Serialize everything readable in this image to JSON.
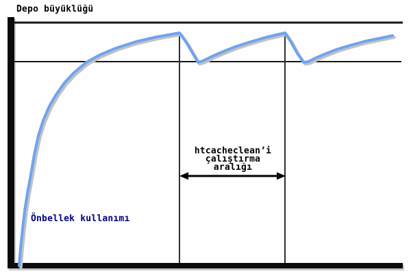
{
  "labels": {
    "y_axis_title": "Depo büyüklüğü",
    "curve_label": "Önbellek kullanımı",
    "interval_label": "htcacheclean’i\nçalıştırma\naralığı"
  },
  "colors": {
    "background": "#fefefe",
    "axis": "#0b0b0b",
    "line": "#161616",
    "curve": "#6fa3ef",
    "curve_shadow": "#c2c2c2",
    "curve_label_text": "#00007f"
  },
  "chart_data": {
    "type": "line",
    "title": "",
    "xlabel": "",
    "ylabel": "Depo büyüklüğü",
    "legend_position": "none",
    "grid": false,
    "units": "pixel coordinates on a 600x406 canvas, y increases downward, no numeric axis ticks shown",
    "series": [
      {
        "name": "Önbellek kullanımı",
        "points": [
          [
            28,
            388
          ],
          [
            30,
            362
          ],
          [
            33,
            334
          ],
          [
            36,
            308
          ],
          [
            40,
            282
          ],
          [
            45,
            255
          ],
          [
            50,
            226
          ],
          [
            56,
            198
          ],
          [
            63,
            176
          ],
          [
            72,
            155
          ],
          [
            82,
            138
          ],
          [
            94,
            121
          ],
          [
            108,
            106
          ],
          [
            126,
            91
          ],
          [
            146,
            80
          ],
          [
            170,
            70
          ],
          [
            198,
            61
          ],
          [
            228,
            54
          ],
          [
            262,
            48
          ],
          [
            272,
            62
          ],
          [
            282,
            79
          ],
          [
            289,
            91
          ],
          [
            296,
            89
          ],
          [
            308,
            83
          ],
          [
            324,
            76
          ],
          [
            344,
            68
          ],
          [
            366,
            61
          ],
          [
            390,
            54
          ],
          [
            416,
            48
          ],
          [
            424,
            60
          ],
          [
            434,
            78
          ],
          [
            443,
            91
          ],
          [
            450,
            90
          ],
          [
            460,
            85
          ],
          [
            474,
            79
          ],
          [
            492,
            72
          ],
          [
            512,
            66
          ],
          [
            534,
            60
          ],
          [
            554,
            56
          ],
          [
            573,
            52
          ]
        ]
      }
    ],
    "reference_lines": [
      {
        "name": "storage-size-line",
        "orientation": "horizontal",
        "y": 33,
        "x1": 21,
        "x2": 588
      },
      {
        "name": "cache-limit-line",
        "orientation": "horizontal",
        "y": 90,
        "x1": 21,
        "x2": 586
      }
    ],
    "event_lines": [
      {
        "name": "htcacheclean-run-1",
        "orientation": "vertical",
        "x": 262,
        "y1": 48,
        "y2": 384
      },
      {
        "name": "htcacheclean-run-2",
        "orientation": "vertical",
        "x": 416,
        "y1": 48,
        "y2": 384
      }
    ],
    "annotation": {
      "text": "htcacheclean’i çalıştırma aralığı",
      "arrow": {
        "x1": 262,
        "x2": 417,
        "y": 257,
        "double_headed": true
      }
    },
    "axes": {
      "y_axis": {
        "x": 11,
        "y1": 25,
        "y2": 392,
        "thickness": 10
      },
      "x_axis": {
        "y": 384,
        "x1": 11,
        "x2": 588,
        "thickness": 8
      }
    }
  }
}
